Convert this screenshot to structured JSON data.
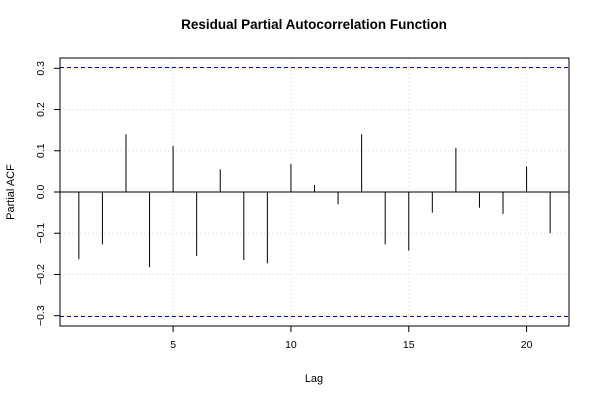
{
  "chart_data": {
    "type": "bar",
    "title": "Residual Partial Autocorrelation Function",
    "xlabel": "Lag",
    "ylabel": "Partial ACF",
    "xlim": [
      0.2,
      21.8
    ],
    "ylim": [
      -0.325,
      0.325
    ],
    "x_ticks": [
      5,
      10,
      15,
      20
    ],
    "y_ticks": [
      -0.3,
      -0.2,
      -0.1,
      0.0,
      0.1,
      0.2,
      0.3
    ],
    "y_tick_labels": [
      "−0.3",
      "−0.2",
      "−0.1",
      "0.0",
      "0.1",
      "0.2",
      "0.3"
    ],
    "lags": [
      1,
      2,
      3,
      4,
      5,
      6,
      7,
      8,
      9,
      10,
      11,
      12,
      13,
      14,
      15,
      16,
      17,
      18,
      19,
      20,
      21
    ],
    "values": [
      -0.163,
      -0.127,
      0.14,
      -0.182,
      0.112,
      -0.155,
      0.055,
      -0.165,
      -0.173,
      0.068,
      0.017,
      -0.03,
      0.14,
      -0.127,
      -0.142,
      -0.05,
      0.107,
      -0.038,
      -0.053,
      0.062,
      -0.1
    ],
    "confidence_bounds": [
      0.302,
      -0.302
    ],
    "grid": true,
    "colors": {
      "bounds": "#0000cc",
      "grid": "#d9d9d9",
      "bars": "#000000"
    }
  }
}
